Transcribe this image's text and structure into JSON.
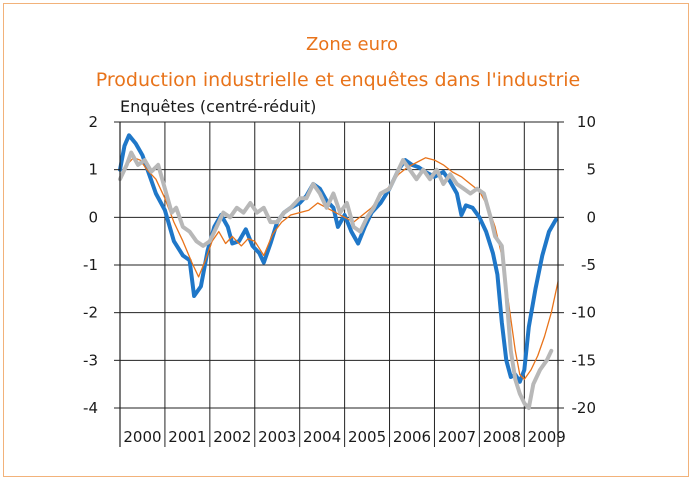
{
  "chart_data": {
    "type": "line",
    "title": "Zone euro",
    "subtitle": "Production industrielle et enquêtes dans l'industrie",
    "ylabel_left": "Enquêtes (centré-réduit)",
    "ylim_left": [
      -4,
      2
    ],
    "ylim_right": [
      -20,
      10
    ],
    "left_ticks": [
      2,
      1,
      0,
      -1,
      -2,
      -3,
      -4
    ],
    "right_ticks": [
      10,
      5,
      0,
      -5,
      -10,
      -15,
      -20
    ],
    "xlim": [
      2000.0,
      2009.75
    ],
    "x_labels": [
      "2000",
      "2001",
      "2002",
      "2003",
      "2004",
      "2005",
      "2006",
      "2007",
      "2008",
      "2009"
    ],
    "grid": true,
    "series": [
      {
        "color": "#1f77c8",
        "width": 4,
        "axis": "left",
        "points": [
          [
            2000.0,
            1.0
          ],
          [
            2000.1,
            1.5
          ],
          [
            2000.2,
            1.72
          ],
          [
            2000.35,
            1.55
          ],
          [
            2000.5,
            1.3
          ],
          [
            2000.65,
            0.9
          ],
          [
            2000.8,
            0.5
          ],
          [
            2001.0,
            0.15
          ],
          [
            2001.2,
            -0.5
          ],
          [
            2001.4,
            -0.8
          ],
          [
            2001.55,
            -0.9
          ],
          [
            2001.65,
            -1.65
          ],
          [
            2001.8,
            -1.45
          ],
          [
            2001.95,
            -0.7
          ],
          [
            2002.1,
            -0.2
          ],
          [
            2002.25,
            0.05
          ],
          [
            2002.4,
            -0.2
          ],
          [
            2002.5,
            -0.55
          ],
          [
            2002.65,
            -0.5
          ],
          [
            2002.8,
            -0.25
          ],
          [
            2002.95,
            -0.6
          ],
          [
            2003.1,
            -0.75
          ],
          [
            2003.2,
            -0.95
          ],
          [
            2003.35,
            -0.55
          ],
          [
            2003.5,
            -0.1
          ],
          [
            2003.65,
            0.1
          ],
          [
            2003.8,
            0.2
          ],
          [
            2004.0,
            0.3
          ],
          [
            2004.15,
            0.45
          ],
          [
            2004.3,
            0.7
          ],
          [
            2004.45,
            0.6
          ],
          [
            2004.6,
            0.35
          ],
          [
            2004.75,
            0.2
          ],
          [
            2004.85,
            -0.2
          ],
          [
            2005.0,
            0.05
          ],
          [
            2005.15,
            -0.3
          ],
          [
            2005.3,
            -0.55
          ],
          [
            2005.45,
            -0.2
          ],
          [
            2005.6,
            0.1
          ],
          [
            2005.8,
            0.3
          ],
          [
            2006.0,
            0.6
          ],
          [
            2006.2,
            1.0
          ],
          [
            2006.35,
            1.2
          ],
          [
            2006.5,
            1.1
          ],
          [
            2006.65,
            1.05
          ],
          [
            2006.8,
            0.95
          ],
          [
            2007.0,
            0.85
          ],
          [
            2007.2,
            0.95
          ],
          [
            2007.35,
            0.75
          ],
          [
            2007.5,
            0.5
          ],
          [
            2007.6,
            0.05
          ],
          [
            2007.7,
            0.25
          ],
          [
            2007.85,
            0.2
          ],
          [
            2008.0,
            0.0
          ],
          [
            2008.15,
            -0.3
          ],
          [
            2008.3,
            -0.75
          ],
          [
            2008.4,
            -1.2
          ],
          [
            2008.5,
            -2.2
          ],
          [
            2008.6,
            -3.0
          ],
          [
            2008.7,
            -3.35
          ],
          [
            2008.8,
            -3.3
          ],
          [
            2008.9,
            -3.45
          ],
          [
            2009.0,
            -3.2
          ],
          [
            2009.1,
            -2.3
          ],
          [
            2009.25,
            -1.5
          ],
          [
            2009.4,
            -0.8
          ],
          [
            2009.55,
            -0.3
          ],
          [
            2009.7,
            -0.05
          ]
        ]
      },
      {
        "color": "#e8731a",
        "width": 1.3,
        "axis": "left",
        "points": [
          [
            2000.0,
            0.8
          ],
          [
            2000.15,
            1.1
          ],
          [
            2000.3,
            1.25
          ],
          [
            2000.45,
            1.2
          ],
          [
            2000.6,
            1.0
          ],
          [
            2000.8,
            0.8
          ],
          [
            2001.0,
            0.4
          ],
          [
            2001.2,
            -0.1
          ],
          [
            2001.4,
            -0.5
          ],
          [
            2001.6,
            -0.95
          ],
          [
            2001.75,
            -1.25
          ],
          [
            2001.9,
            -0.9
          ],
          [
            2002.05,
            -0.5
          ],
          [
            2002.2,
            -0.3
          ],
          [
            2002.35,
            -0.55
          ],
          [
            2002.5,
            -0.4
          ],
          [
            2002.7,
            -0.6
          ],
          [
            2002.85,
            -0.45
          ],
          [
            2003.0,
            -0.5
          ],
          [
            2003.2,
            -0.8
          ],
          [
            2003.4,
            -0.35
          ],
          [
            2003.6,
            -0.1
          ],
          [
            2003.8,
            0.05
          ],
          [
            2004.0,
            0.1
          ],
          [
            2004.2,
            0.15
          ],
          [
            2004.4,
            0.3
          ],
          [
            2004.6,
            0.2
          ],
          [
            2004.8,
            0.1
          ],
          [
            2005.0,
            0.0
          ],
          [
            2005.2,
            -0.1
          ],
          [
            2005.4,
            0.05
          ],
          [
            2005.6,
            0.2
          ],
          [
            2005.8,
            0.45
          ],
          [
            2006.0,
            0.65
          ],
          [
            2006.2,
            0.9
          ],
          [
            2006.4,
            1.05
          ],
          [
            2006.6,
            1.15
          ],
          [
            2006.8,
            1.25
          ],
          [
            2007.0,
            1.2
          ],
          [
            2007.2,
            1.1
          ],
          [
            2007.4,
            0.95
          ],
          [
            2007.6,
            0.85
          ],
          [
            2007.8,
            0.7
          ],
          [
            2008.0,
            0.55
          ],
          [
            2008.2,
            0.2
          ],
          [
            2008.35,
            -0.2
          ],
          [
            2008.5,
            -0.8
          ],
          [
            2008.65,
            -1.8
          ],
          [
            2008.8,
            -2.8
          ],
          [
            2008.9,
            -3.3
          ],
          [
            2009.0,
            -3.4
          ],
          [
            2009.15,
            -3.2
          ],
          [
            2009.3,
            -2.9
          ],
          [
            2009.45,
            -2.5
          ],
          [
            2009.6,
            -2.0
          ],
          [
            2009.75,
            -1.35
          ]
        ]
      },
      {
        "color": "#b8b8b8",
        "width": 4,
        "axis": "right",
        "points": [
          [
            2000.0,
            4.0
          ],
          [
            2000.15,
            5.5
          ],
          [
            2000.25,
            6.8
          ],
          [
            2000.4,
            5.5
          ],
          [
            2000.55,
            6.0
          ],
          [
            2000.7,
            4.8
          ],
          [
            2000.85,
            5.5
          ],
          [
            2001.0,
            3.0
          ],
          [
            2001.15,
            0.5
          ],
          [
            2001.25,
            1.0
          ],
          [
            2001.4,
            -1.0
          ],
          [
            2001.55,
            -1.5
          ],
          [
            2001.7,
            -2.5
          ],
          [
            2001.85,
            -3.0
          ],
          [
            2002.0,
            -2.5
          ],
          [
            2002.15,
            -1.0
          ],
          [
            2002.3,
            0.5
          ],
          [
            2002.45,
            0.0
          ],
          [
            2002.6,
            1.0
          ],
          [
            2002.75,
            0.5
          ],
          [
            2002.9,
            1.5
          ],
          [
            2003.05,
            0.5
          ],
          [
            2003.2,
            1.0
          ],
          [
            2003.35,
            -0.5
          ],
          [
            2003.5,
            -0.5
          ],
          [
            2003.65,
            0.5
          ],
          [
            2003.8,
            1.0
          ],
          [
            2004.0,
            2.0
          ],
          [
            2004.15,
            2.0
          ],
          [
            2004.3,
            3.5
          ],
          [
            2004.45,
            2.5
          ],
          [
            2004.6,
            1.0
          ],
          [
            2004.75,
            2.5
          ],
          [
            2004.9,
            0.5
          ],
          [
            2005.05,
            1.5
          ],
          [
            2005.2,
            -1.0
          ],
          [
            2005.35,
            -1.5
          ],
          [
            2005.5,
            0.0
          ],
          [
            2005.65,
            1.0
          ],
          [
            2005.8,
            2.5
          ],
          [
            2006.0,
            3.0
          ],
          [
            2006.15,
            4.5
          ],
          [
            2006.3,
            6.0
          ],
          [
            2006.45,
            5.0
          ],
          [
            2006.6,
            4.0
          ],
          [
            2006.75,
            5.0
          ],
          [
            2006.9,
            4.0
          ],
          [
            2007.05,
            5.0
          ],
          [
            2007.2,
            3.5
          ],
          [
            2007.35,
            4.5
          ],
          [
            2007.5,
            3.5
          ],
          [
            2007.65,
            3.0
          ],
          [
            2007.8,
            2.5
          ],
          [
            2007.95,
            3.0
          ],
          [
            2008.1,
            2.5
          ],
          [
            2008.25,
            0.0
          ],
          [
            2008.35,
            -2.0
          ],
          [
            2008.5,
            -3.0
          ],
          [
            2008.6,
            -8.0
          ],
          [
            2008.7,
            -14.0
          ],
          [
            2008.8,
            -17.0
          ],
          [
            2008.9,
            -18.5
          ],
          [
            2009.0,
            -19.5
          ],
          [
            2009.1,
            -20.0
          ],
          [
            2009.2,
            -17.5
          ],
          [
            2009.35,
            -16.0
          ],
          [
            2009.5,
            -15.0
          ],
          [
            2009.6,
            -14.0
          ]
        ]
      }
    ]
  }
}
